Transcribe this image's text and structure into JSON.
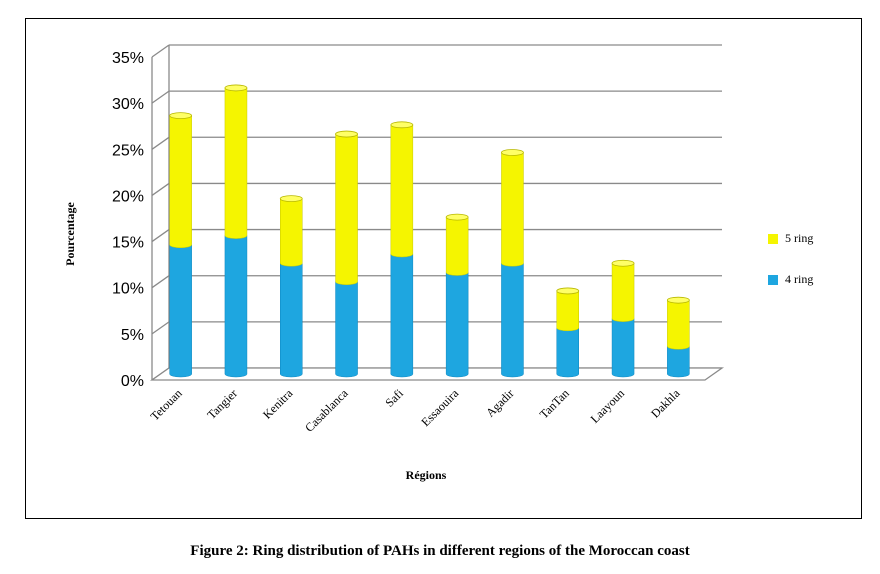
{
  "caption": "Figure 2: Ring distribution of PAHs in different regions of the Moroccan coast",
  "chart_data": {
    "type": "bar",
    "stacked": true,
    "categories": [
      "Tetouan",
      "Tangier",
      "Kenitra",
      "Casablanca",
      "Safi",
      "Essaouira",
      "Agadir",
      "TanTan",
      "Laayoun",
      "Dakhla"
    ],
    "series": [
      {
        "name": "4 ring",
        "color": "#1ea6e0",
        "values": [
          14,
          15,
          12,
          10,
          13,
          11,
          12,
          5,
          6,
          3
        ]
      },
      {
        "name": "5 ring",
        "color": "#f5f500",
        "values": [
          14,
          16,
          7,
          16,
          14,
          6,
          12,
          4,
          6,
          5
        ]
      }
    ],
    "xlabel": "Régions",
    "ylabel": "Pourcentage",
    "ylim": [
      0,
      35
    ],
    "yticks": [
      "0%",
      "5%",
      "10%",
      "15%",
      "20%",
      "25%",
      "30%",
      "35%"
    ],
    "grid": true,
    "legend": "right",
    "legend_order": [
      "5 ring",
      "4 ring"
    ]
  }
}
